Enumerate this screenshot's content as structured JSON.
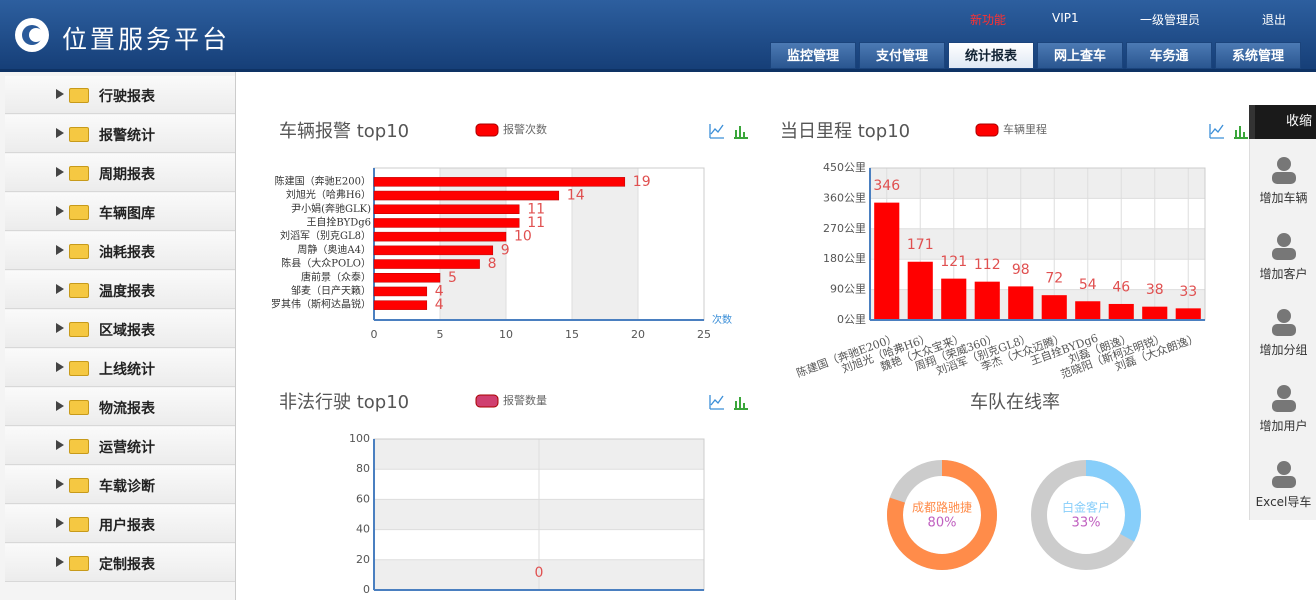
{
  "header": {
    "logo": "位置服务平台",
    "links": [
      "新功能",
      "VIP1",
      "一级管理员",
      "退出"
    ],
    "tabs": [
      "监控管理",
      "支付管理",
      "统计报表",
      "网上查车",
      "车务通",
      "系统管理"
    ]
  },
  "sidebar": {
    "items": [
      "行驶报表",
      "报警统计",
      "周期报表",
      "车辆图库",
      "油耗报表",
      "温度报表",
      "区域报表",
      "上线统计",
      "物流报表",
      "运营统计",
      "车载诊断",
      "用户报表",
      "定制报表"
    ]
  },
  "toolbar": {
    "toggle": "收缩",
    "buttons": [
      "增加车辆",
      "增加客户",
      "增加分组",
      "增加用户",
      "Excel导车"
    ]
  },
  "chart_data": [
    {
      "type": "hbar",
      "title": "车辆报警 top10",
      "legend": "报警次数",
      "x_label": "次数",
      "categories": [
        "陈建国（奔驰E200）",
        "刘旭光（哈弗H6）",
        "尹小娟(奔驰GLK)",
        "王自拴BYDg6",
        "刘滔军（别克GL8）",
        "周静（奥迪A4）",
        "陈县（大众POLO）",
        "唐前景（众泰）",
        "邹麦（日产天籁）",
        "罗其伟（斯柯达晶锐）"
      ],
      "values": [
        19,
        14,
        11,
        11,
        10,
        9,
        8,
        5,
        4,
        4
      ],
      "color": "#ff0000",
      "xlim": [
        0,
        25
      ],
      "xticks": [
        0,
        5,
        10,
        15,
        20,
        25
      ]
    },
    {
      "type": "bar",
      "title": "当日里程 top10",
      "legend": "车辆里程",
      "categories": [
        "陈建国（奔驰E200）",
        "刘旭光（哈弗H6）",
        "魏艳（大众宝来）",
        "周翔（荣威360）",
        "刘滔军（别克GL8）",
        "李杰（大众迈腾）",
        "王自拴BYDg6",
        "刘磊（朗逸）",
        "范晓阳（斯柯达明锐）",
        "刘磊（大众朗逸）"
      ],
      "values": [
        346,
        171,
        121,
        112,
        98,
        72,
        54,
        46,
        38,
        33
      ],
      "color": "#ff0000",
      "ylim": [
        0,
        450
      ],
      "yticks": [
        {
          "value": 0,
          "label": "0公里"
        },
        {
          "value": 90,
          "label": "90公里"
        },
        {
          "value": 180,
          "label": "180公里"
        },
        {
          "value": 270,
          "label": "270公里"
        },
        {
          "value": 360,
          "label": "360公里"
        },
        {
          "value": 450,
          "label": "450公里"
        }
      ]
    },
    {
      "type": "bar",
      "title": "非法行驶 top10",
      "legend": "报警数量",
      "categories": [
        null
      ],
      "values": [
        0
      ],
      "color": "#d04070",
      "ylim": [
        0,
        100
      ],
      "yticks": [
        0,
        20,
        40,
        60,
        80,
        100
      ]
    },
    {
      "type": "donut",
      "title": "车队在线率",
      "track_color": "#cccccc",
      "items": [
        {
          "name": "成都路驰捷",
          "value": 80,
          "value_label": "80%",
          "color": "#ff8c4a"
        },
        {
          "name": "白金客户",
          "value": 33,
          "value_label": "33%",
          "color": "#87cefa"
        }
      ]
    }
  ]
}
